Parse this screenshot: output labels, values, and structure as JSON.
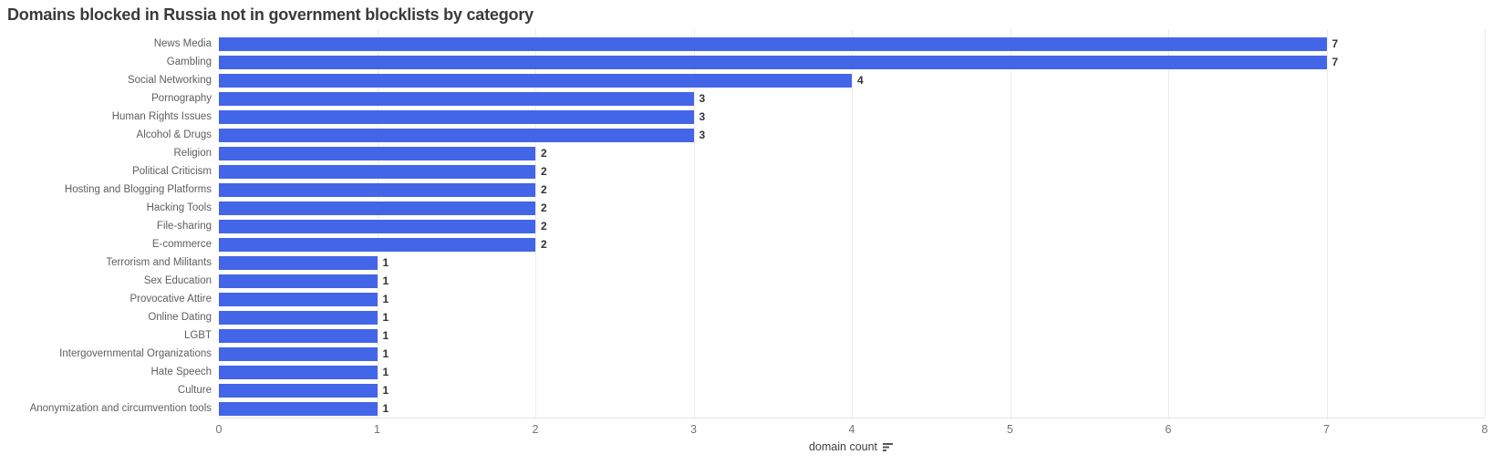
{
  "title": "Domains blocked in Russia not in government blocklists by category",
  "chart_data": {
    "type": "bar",
    "orientation": "horizontal",
    "title": "Domains blocked in Russia not in government blocklists by category",
    "categories": [
      "News Media",
      "Gambling",
      "Social Networking",
      "Pornography",
      "Human Rights Issues",
      "Alcohol & Drugs",
      "Religion",
      "Political Criticism",
      "Hosting and Blogging Platforms",
      "Hacking Tools",
      "File-sharing",
      "E-commerce",
      "Terrorism and Militants",
      "Sex Education",
      "Provocative Attire",
      "Online Dating",
      "LGBT",
      "Intergovernmental Organizations",
      "Hate Speech",
      "Culture",
      "Anonymization and circumvention tools"
    ],
    "values": [
      7,
      7,
      4,
      3,
      3,
      3,
      2,
      2,
      2,
      2,
      2,
      2,
      1,
      1,
      1,
      1,
      1,
      1,
      1,
      1,
      1
    ],
    "xlabel": "domain count",
    "ylabel": "",
    "xlim": [
      0,
      8
    ],
    "x_ticks": [
      "0",
      "1",
      "2",
      "3",
      "4",
      "5",
      "6",
      "7",
      "8"
    ],
    "grid": true,
    "value_labels": true,
    "bar_color": "#4365e8",
    "sorted": "descending"
  },
  "colors": {
    "bar": "#4365e8",
    "gridline": "#ececec",
    "axis_line": "#e2e2e2",
    "title_text": "#3a3a3a",
    "category_text": "#5e5e5e",
    "value_text": "#333333",
    "tick_text": "#737373"
  },
  "icons": {
    "sort_icon": "sort-descending"
  }
}
